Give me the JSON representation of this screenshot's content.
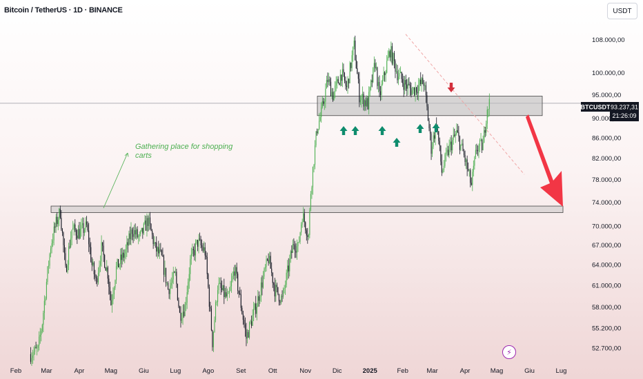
{
  "header": {
    "title": "Bitcoin / TetherUS · 1D · BINANCE",
    "currency": "USDT"
  },
  "price_label": {
    "symbol": "BTCUSDT",
    "price": "93.237,31",
    "countdown": "21:26:09",
    "value": 93237.31
  },
  "annotation": {
    "text_line1": "Gathering place for shopping",
    "text_line2": "carts"
  },
  "events_icon": "lightning-icon",
  "colors": {
    "up": "#4caf50",
    "down": "#131722",
    "marker_green": "#0e8c6d",
    "marker_red": "#d32f3c",
    "arrow_red": "#f23645",
    "zone_fill": "#bdbdbd",
    "label_bg": "#131722"
  },
  "chart_data": {
    "type": "line",
    "title": "Bitcoin / TetherUS · 1D · BINANCE",
    "y_scale": "log",
    "ylim": [
      51500,
      113000
    ],
    "yticks": [
      "108.000,00",
      "100.000,00",
      "95.000,00",
      "90.000,00",
      "86.000,00",
      "82.000,00",
      "78.000,00",
      "74.000,00",
      "70.000,00",
      "67.000,00",
      "64.000,00",
      "61.000,00",
      "58.000,00",
      "55.200,00",
      "52.700,00"
    ],
    "ytick_values": [
      108000,
      100000,
      95000,
      90000,
      86000,
      82000,
      78000,
      74000,
      70000,
      67000,
      64000,
      61000,
      58000,
      55200,
      52700
    ],
    "xticks": [
      "Feb",
      "Mar",
      "Apr",
      "Mag",
      "Giu",
      "Lug",
      "Ago",
      "Set",
      "Ott",
      "Nov",
      "Dic",
      "2025",
      "Feb",
      "Mar",
      "Apr",
      "Mag",
      "Giu",
      "Lug"
    ],
    "xtick_dates": [
      "2024-02-01",
      "2024-03-01",
      "2024-04-01",
      "2024-05-01",
      "2024-06-01",
      "2024-07-01",
      "2024-08-01",
      "2024-09-01",
      "2024-10-01",
      "2024-11-01",
      "2024-12-01",
      "2025-01-01",
      "2025-02-01",
      "2025-03-01",
      "2025-04-01",
      "2025-05-01",
      "2025-06-01",
      "2025-07-01"
    ],
    "x_range": [
      "2024-01-17",
      "2025-07-17"
    ],
    "series": [
      {
        "dates": [
          "2024-02-15",
          "2024-02-22",
          "2024-02-26",
          "2024-03-01",
          "2024-03-05",
          "2024-03-10",
          "2024-03-14",
          "2024-03-19",
          "2024-03-25",
          "2024-04-01",
          "2024-04-08",
          "2024-04-13",
          "2024-04-17",
          "2024-04-22",
          "2024-04-28",
          "2024-05-01",
          "2024-05-06",
          "2024-05-15",
          "2024-05-21",
          "2024-05-28",
          "2024-06-05",
          "2024-06-12",
          "2024-06-18",
          "2024-06-24",
          "2024-07-01",
          "2024-07-05",
          "2024-07-10",
          "2024-07-15",
          "2024-07-22",
          "2024-07-29",
          "2024-08-05",
          "2024-08-10",
          "2024-08-20",
          "2024-08-26",
          "2024-09-06",
          "2024-09-16",
          "2024-09-27",
          "2024-10-03",
          "2024-10-10",
          "2024-10-21",
          "2024-10-25",
          "2024-10-29",
          "2024-11-04",
          "2024-11-06",
          "2024-11-12",
          "2024-11-16",
          "2024-11-22",
          "2024-11-27",
          "2024-12-05",
          "2024-12-10",
          "2024-12-17",
          "2024-12-22",
          "2024-12-30",
          "2025-01-06",
          "2025-01-10",
          "2025-01-20",
          "2025-01-27",
          "2025-02-03",
          "2025-02-10",
          "2025-02-21",
          "2025-02-28",
          "2025-03-05",
          "2025-03-10",
          "2025-03-17",
          "2025-03-24",
          "2025-03-31",
          "2025-04-07",
          "2025-04-12",
          "2025-04-18",
          "2025-04-22",
          "2025-04-24"
        ],
        "values": [
          52000,
          52500,
          56000,
          61500,
          67000,
          70500,
          72500,
          63000,
          69500,
          69000,
          70000,
          64000,
          61500,
          66500,
          62800,
          58500,
          63500,
          66000,
          69500,
          68000,
          71000,
          66500,
          65000,
          60500,
          62500,
          57000,
          58000,
          64500,
          67500,
          66000,
          53500,
          61000,
          59000,
          63500,
          54000,
          58500,
          65000,
          60500,
          59000,
          67500,
          66500,
          72000,
          68500,
          76000,
          88000,
          91000,
          98500,
          95000,
          100000,
          96500,
          106500,
          95000,
          93000,
          102500,
          94500,
          105500,
          100000,
          97500,
          96000,
          98000,
          84000,
          89000,
          79500,
          84000,
          87000,
          82500,
          77000,
          84000,
          84500,
          92500,
          93237
        ]
      }
    ]
  }
}
